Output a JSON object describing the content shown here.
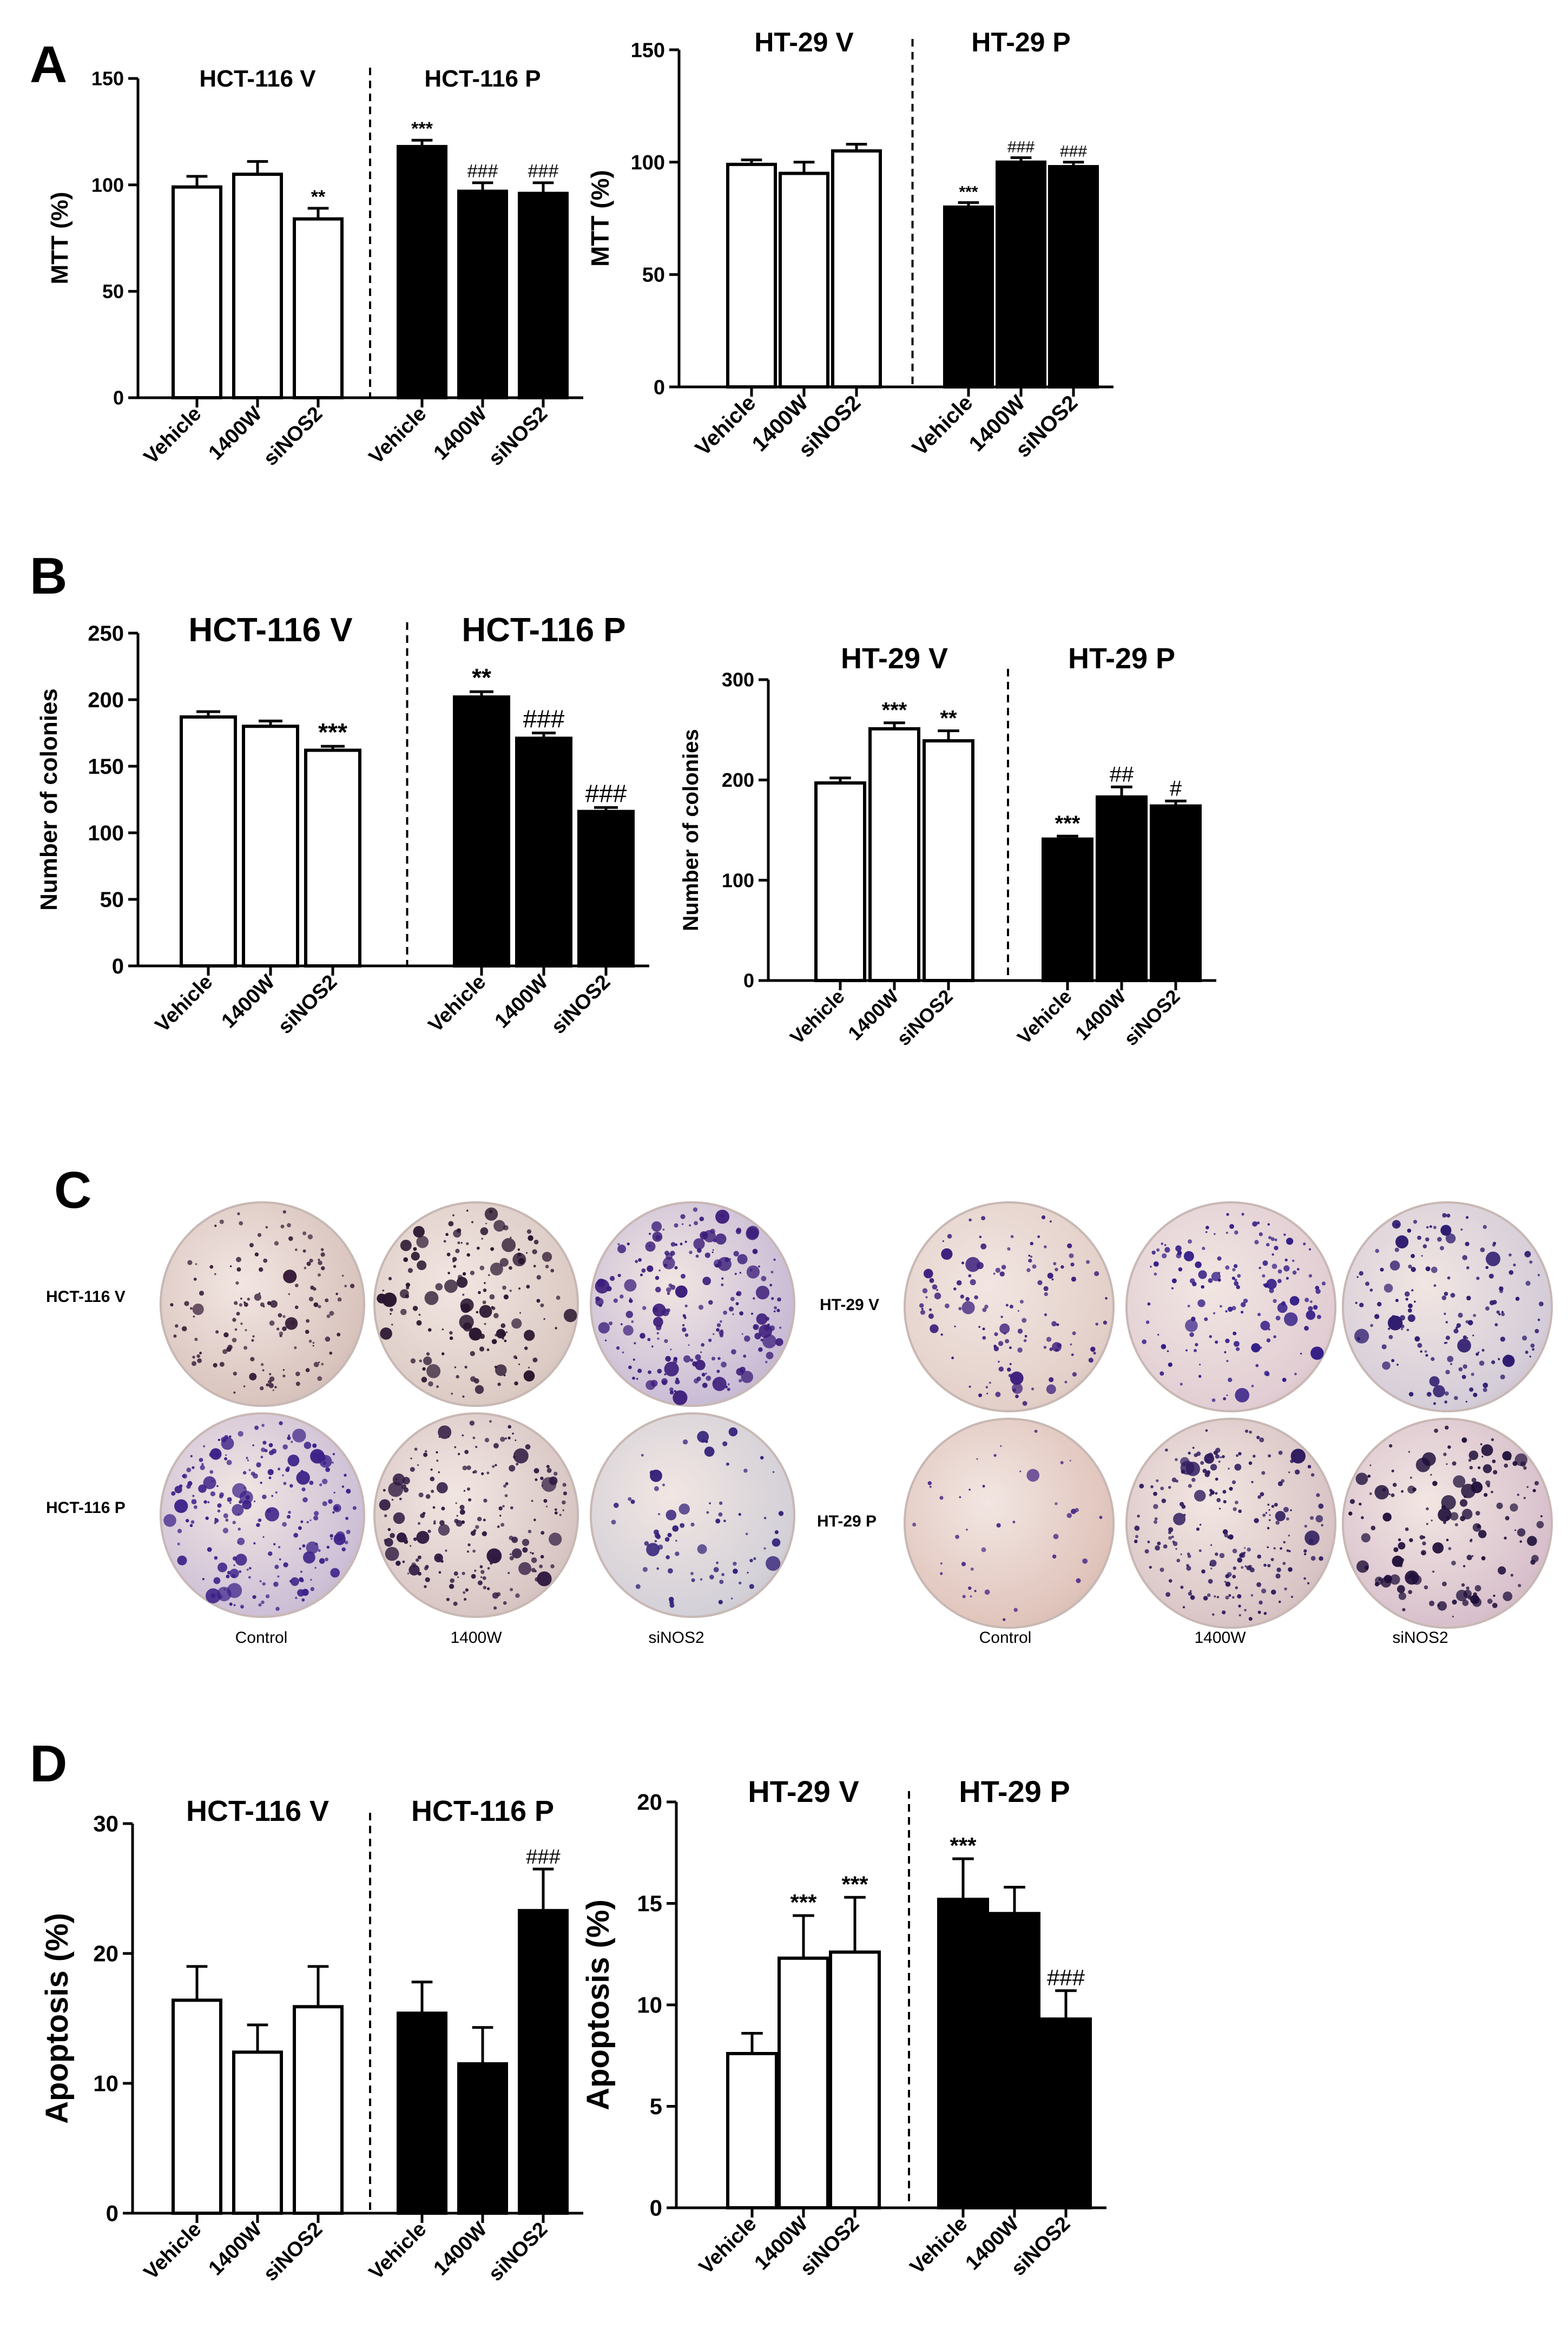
{
  "panels": {
    "A": "A",
    "B": "B",
    "C": "C",
    "D": "D"
  },
  "colors": {
    "vehicle_fill": "#ffffff",
    "p_fill": "#000000",
    "axis": "#000000"
  },
  "chart_data": [
    {
      "id": "A_left",
      "type": "bar",
      "panel": "A",
      "ylabel": "MTT (%)",
      "ylim": [
        0,
        150
      ],
      "yticks": [
        0,
        50,
        100,
        150
      ],
      "groups": [
        {
          "title": "HCT-116 V",
          "fill": "white",
          "categories": [
            "Vehicle",
            "1400W",
            "siNOS2"
          ],
          "values": [
            99,
            105,
            84
          ],
          "errors": [
            5,
            6,
            5
          ],
          "annotations": [
            "",
            "",
            "**"
          ]
        },
        {
          "title": "HCT-116 P",
          "fill": "black",
          "categories": [
            "Vehicle",
            "1400W",
            "siNOS2"
          ],
          "values": [
            118,
            97,
            96
          ],
          "errors": [
            3,
            4,
            5
          ],
          "annotations": [
            "***",
            "###",
            "###"
          ]
        }
      ]
    },
    {
      "id": "A_right",
      "type": "bar",
      "panel": "A",
      "ylabel": "MTT (%)",
      "ylim": [
        0,
        150
      ],
      "yticks": [
        0,
        50,
        100,
        150
      ],
      "groups": [
        {
          "title": "HT-29 V",
          "fill": "white",
          "categories": [
            "Vehicle",
            "1400W",
            "siNOS2"
          ],
          "values": [
            99,
            95,
            105
          ],
          "errors": [
            2,
            5,
            3
          ],
          "annotations": [
            "",
            "",
            ""
          ]
        },
        {
          "title": "HT-29 P",
          "fill": "black",
          "categories": [
            "Vehicle",
            "1400W",
            "siNOS2"
          ],
          "values": [
            80,
            100,
            98
          ],
          "errors": [
            2,
            2,
            2
          ],
          "annotations": [
            "***",
            "###",
            "###"
          ]
        }
      ]
    },
    {
      "id": "B_left",
      "type": "bar",
      "panel": "B",
      "ylabel": "Number of colonies",
      "ylim": [
        0,
        250
      ],
      "yticks": [
        0,
        50,
        100,
        150,
        200,
        250
      ],
      "groups": [
        {
          "title": "HCT-116 V",
          "fill": "white",
          "categories": [
            "Vehicle",
            "1400W",
            "siNOS2"
          ],
          "values": [
            187,
            180,
            162
          ],
          "errors": [
            4,
            4,
            3
          ],
          "annotations": [
            "",
            "",
            "***"
          ]
        },
        {
          "title": "HCT-116 P",
          "fill": "black",
          "categories": [
            "Vehicle",
            "1400W",
            "siNOS2"
          ],
          "values": [
            202,
            171,
            116
          ],
          "errors": [
            4,
            4,
            3
          ],
          "annotations": [
            "**",
            "###",
            "###"
          ]
        }
      ]
    },
    {
      "id": "B_right",
      "type": "bar",
      "panel": "B",
      "ylabel": "Number of colonies",
      "ylim": [
        0,
        300
      ],
      "yticks": [
        0,
        100,
        200,
        300
      ],
      "groups": [
        {
          "title": "HT-29 V",
          "fill": "white",
          "categories": [
            "Vehicle",
            "1400W",
            "siNOS2"
          ],
          "values": [
            197,
            251,
            239
          ],
          "errors": [
            5,
            6,
            10
          ],
          "annotations": [
            "",
            "***",
            "**"
          ]
        },
        {
          "title": "HT-29 P",
          "fill": "black",
          "categories": [
            "Vehicle",
            "1400W",
            "siNOS2"
          ],
          "values": [
            141,
            183,
            174
          ],
          "errors": [
            3,
            10,
            5
          ],
          "annotations": [
            "***",
            "##",
            "#"
          ]
        }
      ]
    },
    {
      "id": "D_left",
      "type": "bar",
      "panel": "D",
      "ylabel": "Apoptosis (%)",
      "ylim": [
        0,
        30
      ],
      "yticks": [
        0,
        10,
        20,
        30
      ],
      "groups": [
        {
          "title": "HCT-116 V",
          "fill": "white",
          "categories": [
            "Vehicle",
            "1400W",
            "siNOS2"
          ],
          "values": [
            16.4,
            12.4,
            15.9
          ],
          "errors": [
            2.6,
            2.1,
            3.1
          ],
          "annotations": [
            "",
            "",
            ""
          ]
        },
        {
          "title": "HCT-116 P",
          "fill": "black",
          "categories": [
            "Vehicle",
            "1400W",
            "siNOS2"
          ],
          "values": [
            15.4,
            11.5,
            23.3
          ],
          "errors": [
            2.4,
            2.8,
            3.2
          ],
          "annotations": [
            "",
            "",
            "###"
          ]
        }
      ]
    },
    {
      "id": "D_right",
      "type": "bar",
      "panel": "D",
      "ylabel": "Apoptosis (%)",
      "ylim": [
        0,
        20
      ],
      "yticks": [
        0,
        5,
        10,
        15,
        20
      ],
      "groups": [
        {
          "title": "HT-29 V",
          "fill": "white",
          "categories": [
            "Vehicle",
            "1400W",
            "siNOS2"
          ],
          "values": [
            7.6,
            12.3,
            12.6
          ],
          "errors": [
            1.0,
            2.1,
            2.7
          ],
          "annotations": [
            "",
            "***",
            "***"
          ]
        },
        {
          "title": "HT-29 P",
          "fill": "black",
          "categories": [
            "Vehicle",
            "1400W",
            "siNOS2"
          ],
          "values": [
            15.2,
            14.5,
            9.3
          ],
          "errors": [
            2.0,
            1.3,
            1.4
          ],
          "annotations": [
            "***",
            "",
            "###"
          ]
        }
      ]
    }
  ],
  "colony_panel": {
    "left": {
      "row_labels": [
        "HCT-116 V",
        "HCT-116 P"
      ],
      "col_labels": [
        "Control",
        "1400W",
        "siNOS2"
      ]
    },
    "right": {
      "row_labels": [
        "HT-29 V",
        "HT-29 P"
      ],
      "col_labels": [
        "Control",
        "1400W",
        "siNOS2"
      ]
    }
  }
}
